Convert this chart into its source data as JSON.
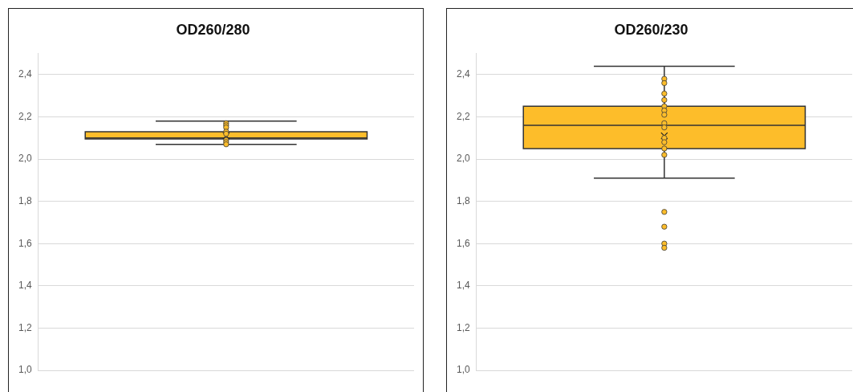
{
  "chart_data": [
    {
      "type": "box",
      "title": "OD260/280",
      "categories": [
        null
      ],
      "ylim": [
        1.0,
        2.5
      ],
      "yticks": [
        {
          "value": 1.0,
          "label": "1,0"
        },
        {
          "value": 1.2,
          "label": "1,2"
        },
        {
          "value": 1.4,
          "label": "1,4"
        },
        {
          "value": 1.6,
          "label": "1,6"
        },
        {
          "value": 1.8,
          "label": "1,8"
        },
        {
          "value": 2.0,
          "label": "2,0"
        },
        {
          "value": 2.2,
          "label": "2,2"
        },
        {
          "value": 2.4,
          "label": "2,4"
        }
      ],
      "grid": "y",
      "marker": "circle",
      "series": [
        {
          "type": "box",
          "color": "#fdbd2a",
          "boxes": [
            {
              "low": 2.07,
              "q1": 2.095,
              "median": 2.1,
              "q3": 2.13,
              "high": 2.18,
              "mean": 2.11
            }
          ]
        },
        {
          "type": "scatter",
          "color": "#fdbd2a",
          "x": [
            null,
            null,
            null,
            null,
            null,
            null,
            null,
            null
          ],
          "values": [
            2.17,
            2.16,
            2.15,
            2.13,
            2.12,
            2.09,
            2.08,
            2.07
          ]
        }
      ]
    },
    {
      "type": "box",
      "title": "OD260/230",
      "categories": [
        null
      ],
      "ylim": [
        1.0,
        2.5
      ],
      "yticks": [
        {
          "value": 1.0,
          "label": "1,0"
        },
        {
          "value": 1.2,
          "label": "1,2"
        },
        {
          "value": 1.4,
          "label": "1,4"
        },
        {
          "value": 1.6,
          "label": "1,6"
        },
        {
          "value": 1.8,
          "label": "1,8"
        },
        {
          "value": 2.0,
          "label": "2,0"
        },
        {
          "value": 2.2,
          "label": "2,2"
        },
        {
          "value": 2.4,
          "label": "2,4"
        }
      ],
      "grid": "y",
      "marker": "circle",
      "series": [
        {
          "type": "box",
          "color": "#fdbd2a",
          "boxes": [
            {
              "low": 1.91,
              "q1": 2.05,
              "median": 2.16,
              "q3": 2.25,
              "high": 2.44,
              "mean": 2.11,
              "outliers": [
                1.75,
                1.68,
                1.6,
                1.58
              ]
            }
          ]
        },
        {
          "type": "scatter",
          "color": "#fdbd2a",
          "x": [
            null,
            null,
            null,
            null,
            null,
            null,
            null,
            null,
            null,
            null,
            null,
            null,
            null
          ],
          "values": [
            2.38,
            2.36,
            2.31,
            2.28,
            2.25,
            2.23,
            2.21,
            2.17,
            2.15,
            2.1,
            2.08,
            2.05,
            2.02
          ]
        }
      ]
    }
  ]
}
